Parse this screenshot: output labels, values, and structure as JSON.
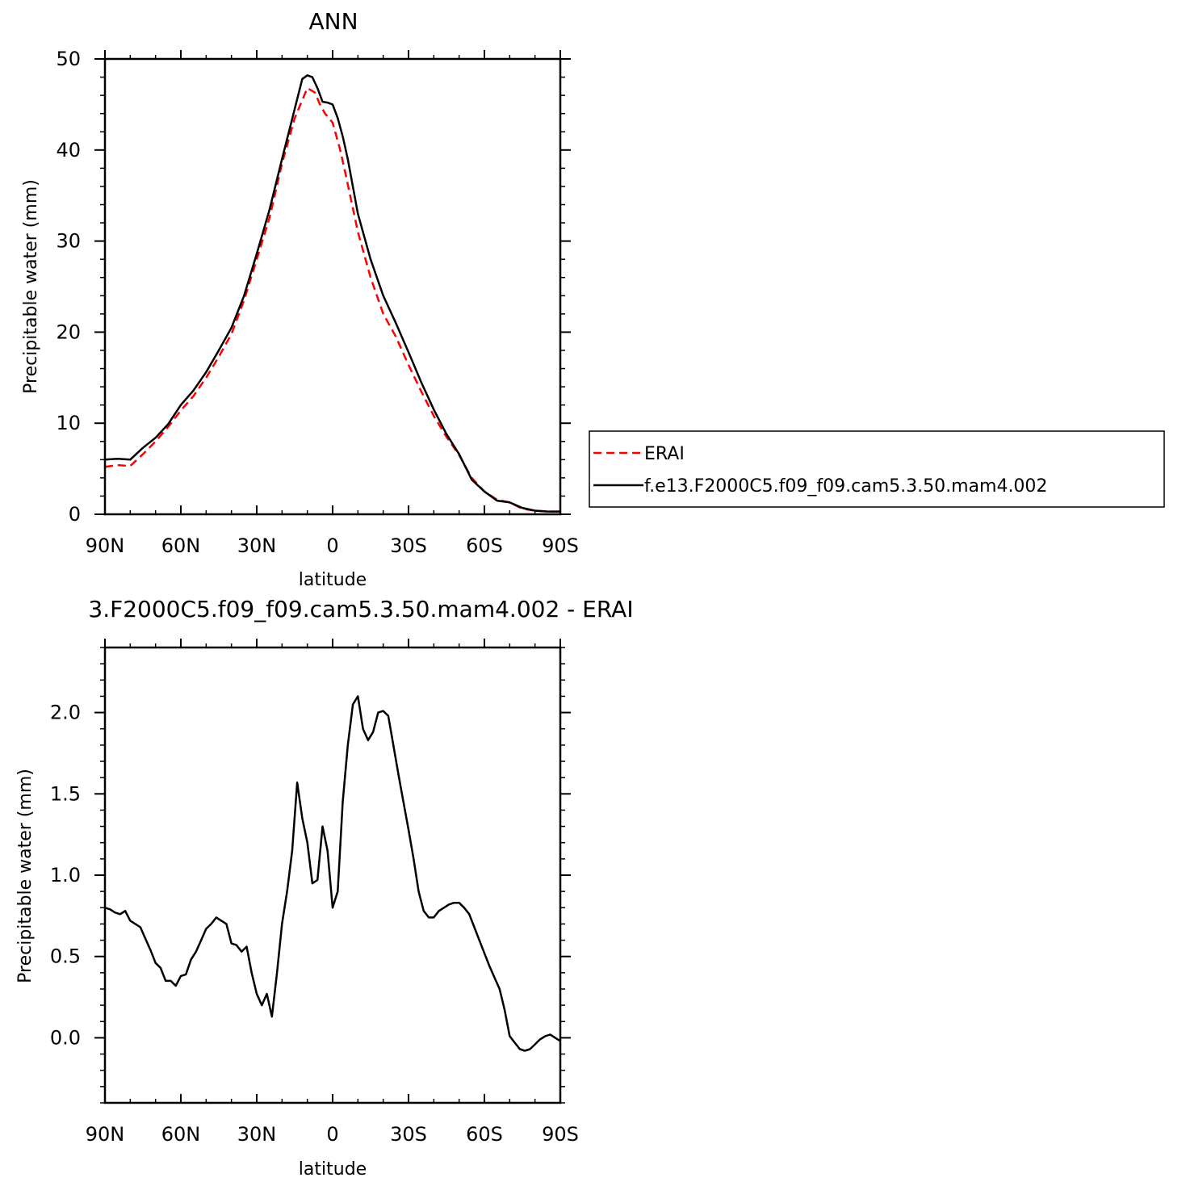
{
  "chart_data": [
    {
      "type": "line",
      "title": "ANN",
      "xlabel": "latitude",
      "ylabel": "Precipitable water (mm)",
      "xlim": [
        90,
        -90
      ],
      "ylim": [
        0,
        50
      ],
      "x_ticks": [
        90,
        60,
        30,
        0,
        -30,
        -60,
        -90
      ],
      "x_tick_labels": [
        "90N",
        "60N",
        "30N",
        "0",
        "30S",
        "60S",
        "90S"
      ],
      "y_ticks": [
        0,
        10,
        20,
        30,
        40,
        50
      ],
      "y_tick_labels": [
        "0",
        "10",
        "20",
        "30",
        "40",
        "50"
      ],
      "grid": false,
      "legend_position": "right",
      "series": [
        {
          "name": "ERAI",
          "color": "#ff0000",
          "dash": "dashed",
          "x": [
            90,
            85,
            80,
            75,
            70,
            65,
            60,
            55,
            50,
            45,
            40,
            35,
            30,
            25,
            20,
            15,
            10,
            7,
            5,
            3,
            0,
            -3,
            -5,
            -10,
            -15,
            -20,
            -25,
            -30,
            -35,
            -40,
            -45,
            -50,
            -55,
            -60,
            -65,
            -70,
            -75,
            -80,
            -85,
            -90
          ],
          "y": [
            5.2,
            5.4,
            5.3,
            6.6,
            8.0,
            9.6,
            11.4,
            13.0,
            15.0,
            17.3,
            19.8,
            23.5,
            28.0,
            32.5,
            38.5,
            43.5,
            46.8,
            46.3,
            45.0,
            44.0,
            43.0,
            40.0,
            37.5,
            31.0,
            26.0,
            22.0,
            19.5,
            16.4,
            13.5,
            10.8,
            8.5,
            6.5,
            4.0,
            2.5,
            1.6,
            1.3,
            0.6,
            0.4,
            0.3,
            0.3
          ]
        },
        {
          "name": "f.e13.F2000C5.f09_f09.cam5.3.50.mam4.002",
          "color": "#000000",
          "dash": "solid",
          "x": [
            90,
            85,
            80,
            75,
            70,
            65,
            60,
            55,
            50,
            45,
            40,
            35,
            30,
            25,
            20,
            15,
            12,
            10,
            8,
            6,
            4,
            2,
            0,
            -2,
            -4,
            -6,
            -10,
            -15,
            -20,
            -25,
            -30,
            -35,
            -40,
            -45,
            -50,
            -55,
            -60,
            -65,
            -70,
            -75,
            -80,
            -85,
            -90
          ],
          "y": [
            6.0,
            6.1,
            6.0,
            7.3,
            8.4,
            9.9,
            12.0,
            13.6,
            15.6,
            18.0,
            20.5,
            24.0,
            28.6,
            33.4,
            39.0,
            44.5,
            47.8,
            48.2,
            48.0,
            46.8,
            45.3,
            45.2,
            45.0,
            43.5,
            41.5,
            39.0,
            33.0,
            28.0,
            24.0,
            21.0,
            17.8,
            14.5,
            11.5,
            8.8,
            6.6,
            3.8,
            2.5,
            1.5,
            1.3,
            0.7,
            0.4,
            0.3,
            0.3
          ]
        }
      ]
    },
    {
      "type": "line",
      "title": "3.F2000C5.f09_f09.cam5.3.50.mam4.002 - ERAI",
      "xlabel": "latitude",
      "ylabel": "Precipitable water (mm)",
      "xlim": [
        90,
        -90
      ],
      "ylim": [
        -0.4,
        2.4
      ],
      "x_ticks": [
        90,
        60,
        30,
        0,
        -30,
        -60,
        -90
      ],
      "x_tick_labels": [
        "90N",
        "60N",
        "30N",
        "0",
        "30S",
        "60S",
        "90S"
      ],
      "y_ticks": [
        0.0,
        0.5,
        1.0,
        1.5,
        2.0
      ],
      "y_tick_labels": [
        "0.0",
        "0.5",
        "1.0",
        "1.5",
        "2.0"
      ],
      "grid": false,
      "series": [
        {
          "color": "#000000",
          "dash": "solid",
          "x": [
            90,
            88,
            86,
            84,
            82,
            80,
            78,
            76,
            74,
            72,
            70,
            68,
            66,
            64,
            62,
            60,
            58,
            56,
            54,
            52,
            50,
            48,
            46,
            44,
            42,
            40,
            38,
            36,
            34,
            32,
            30,
            28,
            26,
            24,
            22,
            20,
            18,
            16,
            14,
            12,
            10,
            8,
            6,
            4,
            2,
            0,
            -2,
            -4,
            -6,
            -8,
            -10,
            -12,
            -14,
            -16,
            -18,
            -20,
            -22,
            -24,
            -26,
            -28,
            -30,
            -32,
            -34,
            -36,
            -38,
            -40,
            -42,
            -44,
            -46,
            -48,
            -50,
            -52,
            -54,
            -56,
            -58,
            -60,
            -62,
            -64,
            -66,
            -68,
            -70,
            -72,
            -74,
            -76,
            -78,
            -80,
            -82,
            -84,
            -86,
            -88,
            -90
          ],
          "y": [
            0.8,
            0.79,
            0.77,
            0.76,
            0.78,
            0.72,
            0.7,
            0.68,
            0.61,
            0.54,
            0.46,
            0.43,
            0.35,
            0.35,
            0.32,
            0.38,
            0.39,
            0.48,
            0.53,
            0.6,
            0.67,
            0.7,
            0.74,
            0.72,
            0.7,
            0.58,
            0.57,
            0.53,
            0.56,
            0.4,
            0.27,
            0.2,
            0.27,
            0.13,
            0.4,
            0.7,
            0.9,
            1.15,
            1.57,
            1.35,
            1.2,
            0.95,
            0.97,
            1.3,
            1.15,
            0.8,
            0.9,
            1.45,
            1.8,
            2.05,
            2.1,
            1.9,
            1.83,
            1.88,
            2.0,
            2.01,
            1.98,
            1.8,
            1.62,
            1.45,
            1.28,
            1.1,
            0.9,
            0.78,
            0.74,
            0.74,
            0.78,
            0.8,
            0.82,
            0.83,
            0.83,
            0.8,
            0.76,
            0.68,
            0.6,
            0.52,
            0.44,
            0.37,
            0.3,
            0.17,
            0.01,
            -0.03,
            -0.07,
            -0.08,
            -0.07,
            -0.04,
            -0.01,
            0.01,
            0.02,
            0.0,
            -0.02
          ]
        }
      ]
    }
  ]
}
